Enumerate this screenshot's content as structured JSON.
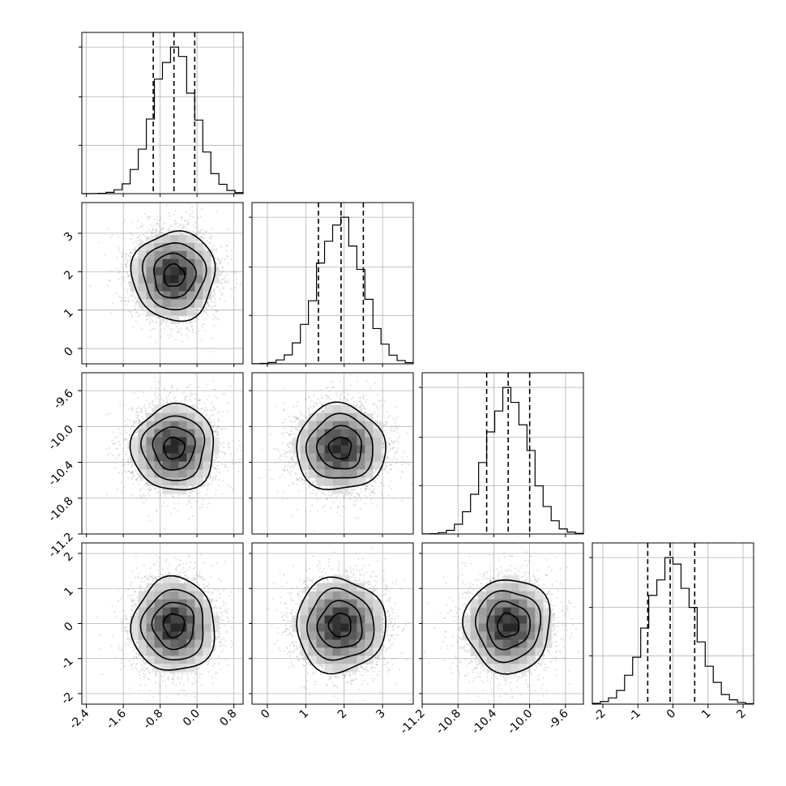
{
  "chart_data": {
    "type": "corner",
    "parameters": [
      {
        "index": 0,
        "range": [
          -2.5,
          1.0
        ],
        "center": -0.5,
        "sigma": 0.45,
        "quantiles": [
          -0.95,
          -0.5,
          -0.05
        ],
        "ticks": [
          "-2.4",
          "-1.6",
          "-0.8",
          "0.0",
          "0.8"
        ],
        "tick_values": [
          -2.4,
          -1.6,
          -0.8,
          0.0,
          0.8
        ]
      },
      {
        "index": 1,
        "range": [
          -0.4,
          3.8
        ],
        "center": 1.9,
        "sigma": 0.58,
        "quantiles": [
          1.33,
          1.92,
          2.5
        ],
        "ticks": [
          "0",
          "1",
          "2",
          "3"
        ],
        "tick_values": [
          0,
          1,
          2,
          3
        ]
      },
      {
        "index": 2,
        "range": [
          -11.2,
          -9.4
        ],
        "center": -10.24,
        "sigma": 0.24,
        "quantiles": [
          -10.48,
          -10.24,
          -10.0
        ],
        "ticks": [
          "-11.2",
          "-10.8",
          "-10.4",
          "-10.0",
          "-9.6"
        ],
        "tick_values": [
          -11.2,
          -10.8,
          -10.4,
          -10.0,
          -9.6
        ]
      },
      {
        "index": 3,
        "range": [
          -2.3,
          2.3
        ],
        "center": -0.05,
        "sigma": 0.67,
        "quantiles": [
          -0.72,
          -0.08,
          0.62
        ],
        "ticks": [
          "-2",
          "-1",
          "0",
          "1",
          "2"
        ],
        "tick_values": [
          -2,
          -1,
          0,
          1,
          2
        ]
      }
    ],
    "histogram_bins": 20,
    "contour_levels_sigma": [
      0.5,
      1.0,
      1.5,
      2.0
    ],
    "n_samples": 4000,
    "grid": true
  }
}
